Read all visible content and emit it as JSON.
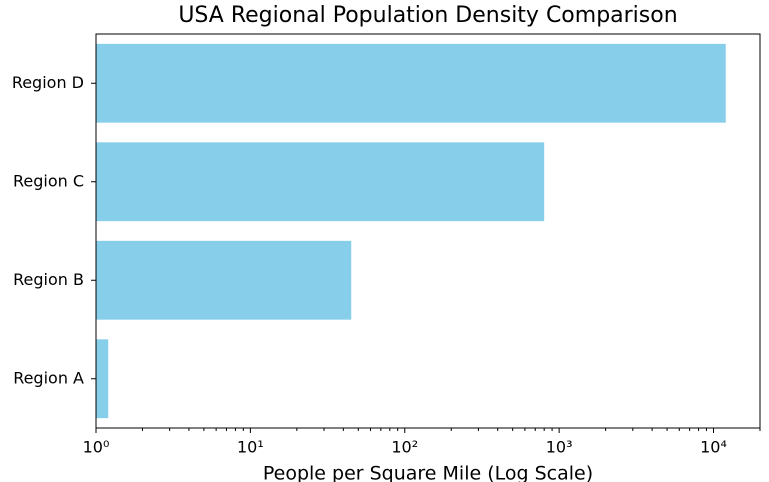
{
  "chart_data": {
    "type": "barh",
    "title": "USA Regional Population Density Comparison",
    "xlabel": "People per Square Mile (Log Scale)",
    "categories": [
      "Region A",
      "Region B",
      "Region C",
      "Region D"
    ],
    "values": [
      1.2,
      45,
      800,
      12000
    ],
    "color": "#87ceeb",
    "xscale": "log",
    "xlim": [
      1,
      20000
    ],
    "xticks": [
      {
        "value": 1,
        "label": "10⁰"
      },
      {
        "value": 10,
        "label": "10¹"
      },
      {
        "value": 100,
        "label": "10²"
      },
      {
        "value": 1000,
        "label": "10³"
      },
      {
        "value": 10000,
        "label": "10⁴"
      }
    ],
    "xminorticks": [
      2,
      3,
      4,
      5,
      6,
      7,
      8,
      9,
      20,
      30,
      40,
      50,
      60,
      70,
      80,
      90,
      200,
      300,
      400,
      500,
      600,
      700,
      800,
      900,
      2000,
      3000,
      4000,
      5000,
      6000,
      7000,
      8000,
      9000,
      20000
    ],
    "grid": false
  }
}
